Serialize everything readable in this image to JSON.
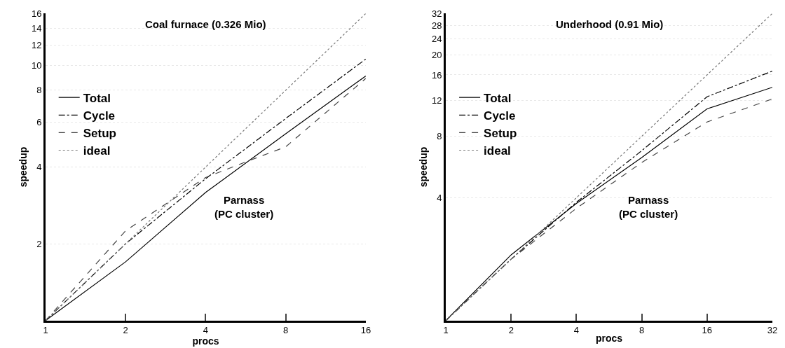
{
  "chart_data": [
    {
      "type": "line",
      "title": "Coal furnace (0.326 Mio)",
      "xlabel": "procs",
      "ylabel": "speedup",
      "log": "xy",
      "grid": "y",
      "legend": "left",
      "xlim": [
        1,
        16
      ],
      "xticks": [
        1,
        2,
        4,
        8,
        16
      ],
      "ylim": [
        1,
        16
      ],
      "yticks": [
        2,
        4,
        6,
        8,
        10,
        12,
        14,
        16
      ],
      "annotations": [
        "Parnass\n(PC cluster)"
      ],
      "series": [
        {
          "name": "Total",
          "color": "#000000",
          "line_style": "solid",
          "x": [
            1,
            2,
            4,
            8,
            16
          ],
          "values": [
            1,
            1.7,
            3.18,
            5.4,
            9.1
          ]
        },
        {
          "name": "Cycle",
          "color": "#000000",
          "line_style": "dashdot",
          "x": [
            1,
            2,
            4,
            8,
            16
          ],
          "values": [
            1,
            2.0,
            3.6,
            6.2,
            10.6
          ]
        },
        {
          "name": "Setup",
          "color": "#444444",
          "line_style": "dashed",
          "x": [
            1,
            2,
            4,
            5.7,
            8,
            16
          ],
          "values": [
            1,
            2.25,
            3.64,
            4.2,
            4.8,
            8.9
          ]
        },
        {
          "name": "ideal",
          "color": "#777777",
          "line_style": "dotted",
          "x": [
            1,
            2,
            4,
            8,
            16
          ],
          "values": [
            1,
            2,
            4,
            8,
            16
          ]
        }
      ]
    },
    {
      "type": "line",
      "title": "Underhood (0.91 Mio)",
      "xlabel": "procs",
      "ylabel": "speedup",
      "log": "xy",
      "grid": "y",
      "legend": "left",
      "xlim": [
        1,
        32
      ],
      "xticks": [
        1,
        2,
        4,
        8,
        16,
        32
      ],
      "ylim": [
        1,
        32
      ],
      "yticks": [
        4,
        8,
        12,
        16,
        20,
        24,
        28,
        32
      ],
      "annotations": [
        "Parnass\n(PC cluster)"
      ],
      "series": [
        {
          "name": "Total",
          "color": "#000000",
          "line_style": "solid",
          "x": [
            1,
            2,
            4,
            8,
            16,
            32
          ],
          "values": [
            1,
            2.1,
            3.75,
            6.3,
            10.9,
            13.9
          ]
        },
        {
          "name": "Cycle",
          "color": "#000000",
          "line_style": "dashdot",
          "x": [
            1,
            2,
            4,
            8,
            16,
            32
          ],
          "values": [
            1,
            2.0,
            3.8,
            6.8,
            12.5,
            16.7
          ]
        },
        {
          "name": "Setup",
          "color": "#444444",
          "line_style": "dashed",
          "x": [
            1,
            2,
            4,
            8,
            16,
            32
          ],
          "values": [
            1,
            2.0,
            3.55,
            5.95,
            9.4,
            12.2
          ]
        },
        {
          "name": "ideal",
          "color": "#777777",
          "line_style": "dotted",
          "x": [
            1,
            2,
            4,
            8,
            16,
            32
          ],
          "values": [
            1,
            2,
            4,
            8,
            16,
            32
          ]
        }
      ]
    }
  ]
}
